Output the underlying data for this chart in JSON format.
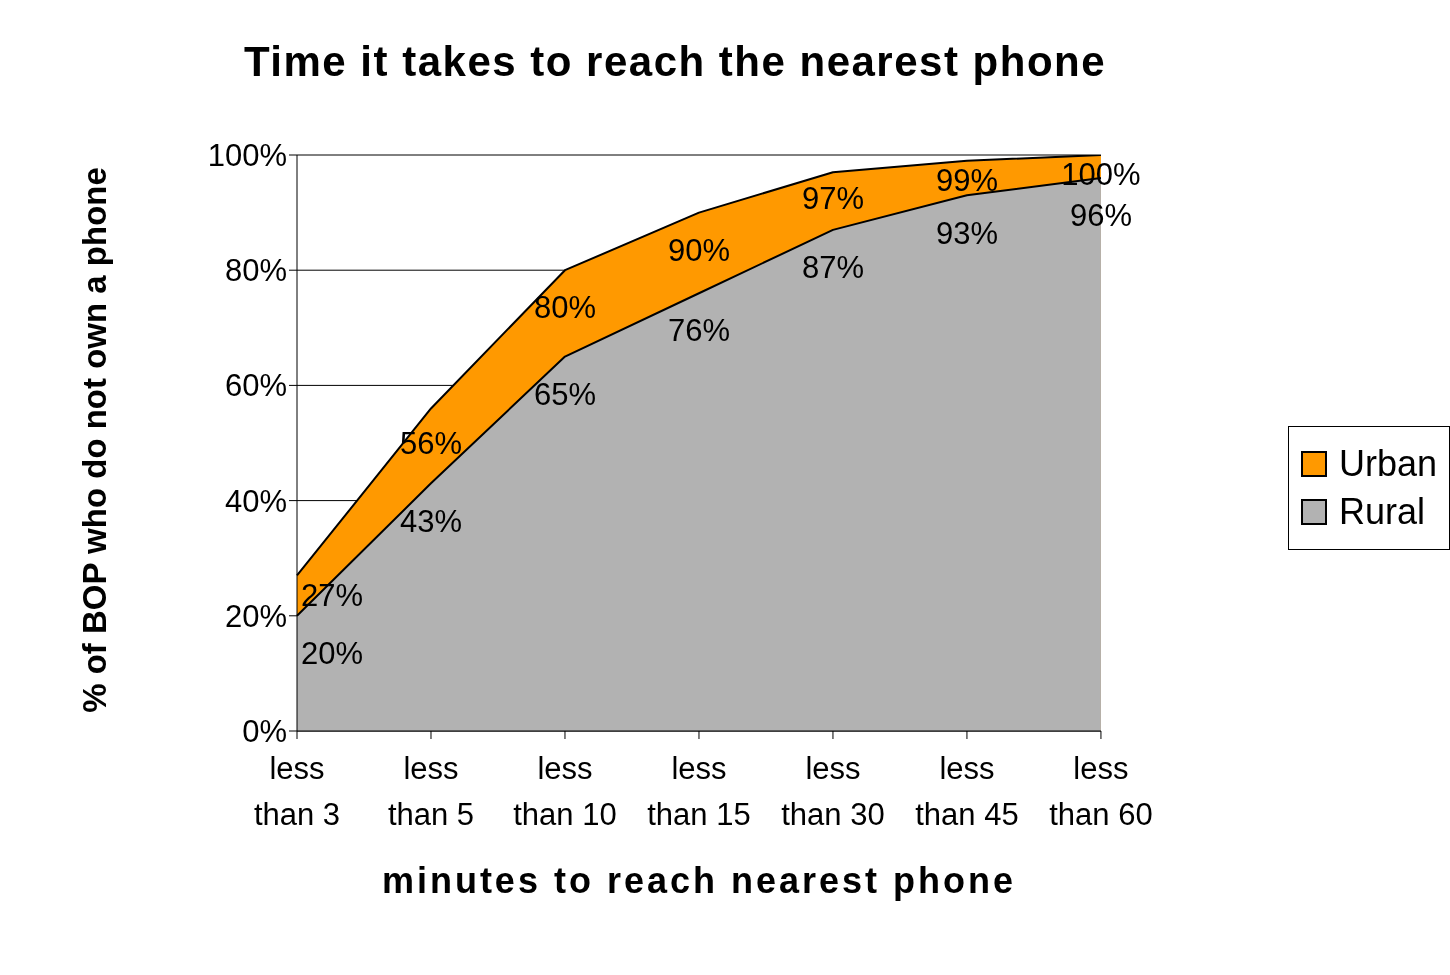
{
  "chart_data": {
    "type": "area",
    "title": "Time it takes to reach the nearest phone",
    "xlabel": "minutes to reach nearest phone",
    "ylabel": "% of BOP who do not own a phone",
    "categories": [
      "less than 3",
      "less than 5",
      "less than 10",
      "less than 15",
      "less than 30",
      "less than 45",
      "less than 60"
    ],
    "series": [
      {
        "name": "Urban",
        "color": "#ff9900",
        "values": [
          27,
          56,
          80,
          90,
          97,
          99,
          100
        ],
        "value_labels": [
          "27%",
          "56%",
          "80%",
          "90%",
          "97%",
          "99%",
          "100%"
        ]
      },
      {
        "name": "Rural",
        "color": "#b2b2b2",
        "values": [
          20,
          43,
          65,
          76,
          87,
          93,
          96
        ],
        "value_labels": [
          "20%",
          "43%",
          "65%",
          "76%",
          "87%",
          "93%",
          "96%"
        ]
      }
    ],
    "ylim": [
      0,
      100
    ],
    "yticks": [
      {
        "value": 0,
        "label": "0%"
      },
      {
        "value": 20,
        "label": "20%"
      },
      {
        "value": 40,
        "label": "40%"
      },
      {
        "value": 60,
        "label": "60%"
      },
      {
        "value": 80,
        "label": "80%"
      },
      {
        "value": 100,
        "label": "100%"
      }
    ],
    "grid": "y",
    "legend": "right"
  }
}
